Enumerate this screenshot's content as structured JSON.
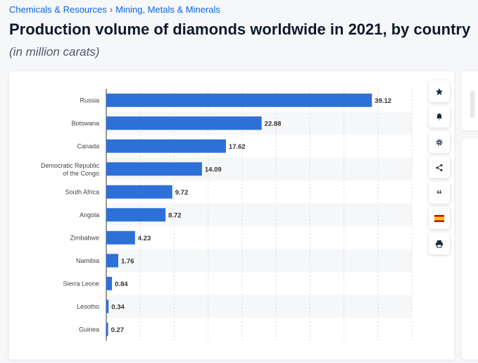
{
  "breadcrumb": {
    "category": "Chemicals & Resources",
    "separator": "›",
    "subcategory": "Mining, Metals & Minerals"
  },
  "header": {
    "title": "Production volume of diamonds worldwide in 2021, by country",
    "subtitle": "(in million carats)"
  },
  "toolbar": {
    "icons": [
      "star-icon",
      "bell-icon",
      "gear-icon",
      "share-icon",
      "quote-icon",
      "flag-icon",
      "print-icon"
    ],
    "quote_glyph": "“",
    "flag_colors": [
      "#c60b1e",
      "#ffc400"
    ]
  },
  "colors": {
    "bar": "#2d70d8",
    "accent": "#0666e5"
  },
  "chart_data": {
    "type": "bar",
    "orientation": "horizontal",
    "categories": [
      "Russia",
      "Botswana",
      "Canada",
      "Democratic Republic of the Congo",
      "South Africa",
      "Angola",
      "Zimbabwe",
      "Namibia",
      "Sierra Leone",
      "Lesotho",
      "Guinea"
    ],
    "values": [
      39.12,
      22.88,
      17.62,
      14.09,
      9.72,
      8.72,
      4.23,
      1.76,
      0.84,
      0.34,
      0.27
    ],
    "data_labels": [
      "39.12",
      "22.88",
      "17.62",
      "14.09",
      "9.72",
      "8.72",
      "4.23",
      "1.76",
      "0.84",
      "0.34",
      "0.27"
    ],
    "xlim": [
      0,
      45
    ],
    "grid": true,
    "legend": "none"
  }
}
